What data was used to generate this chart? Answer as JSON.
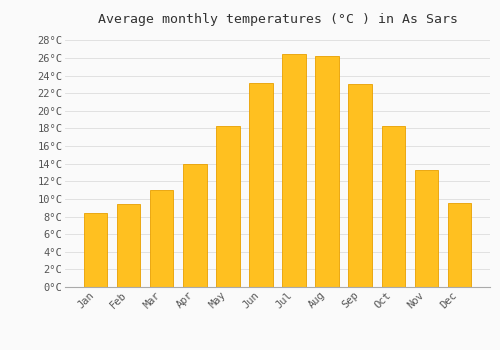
{
  "title": "Average monthly temperatures (°C ) in As Sars",
  "months": [
    "Jan",
    "Feb",
    "Mar",
    "Apr",
    "May",
    "Jun",
    "Jul",
    "Aug",
    "Sep",
    "Oct",
    "Nov",
    "Dec"
  ],
  "values": [
    8.4,
    9.4,
    11.0,
    14.0,
    18.3,
    23.1,
    26.4,
    26.2,
    23.0,
    18.3,
    13.3,
    9.5
  ],
  "bar_color": "#FFC020",
  "bar_edge_color": "#E8A000",
  "background_color": "#FAFAFA",
  "grid_color": "#DDDDDD",
  "title_fontsize": 9.5,
  "tick_label_fontsize": 7.5,
  "ylim": [
    0,
    29
  ],
  "yticks": [
    0,
    2,
    4,
    6,
    8,
    10,
    12,
    14,
    16,
    18,
    20,
    22,
    24,
    26,
    28
  ],
  "ytick_labels": [
    "0°C",
    "2°C",
    "4°C",
    "6°C",
    "8°C",
    "10°C",
    "12°C",
    "14°C",
    "16°C",
    "18°C",
    "20°C",
    "22°C",
    "24°C",
    "26°C",
    "28°C"
  ]
}
